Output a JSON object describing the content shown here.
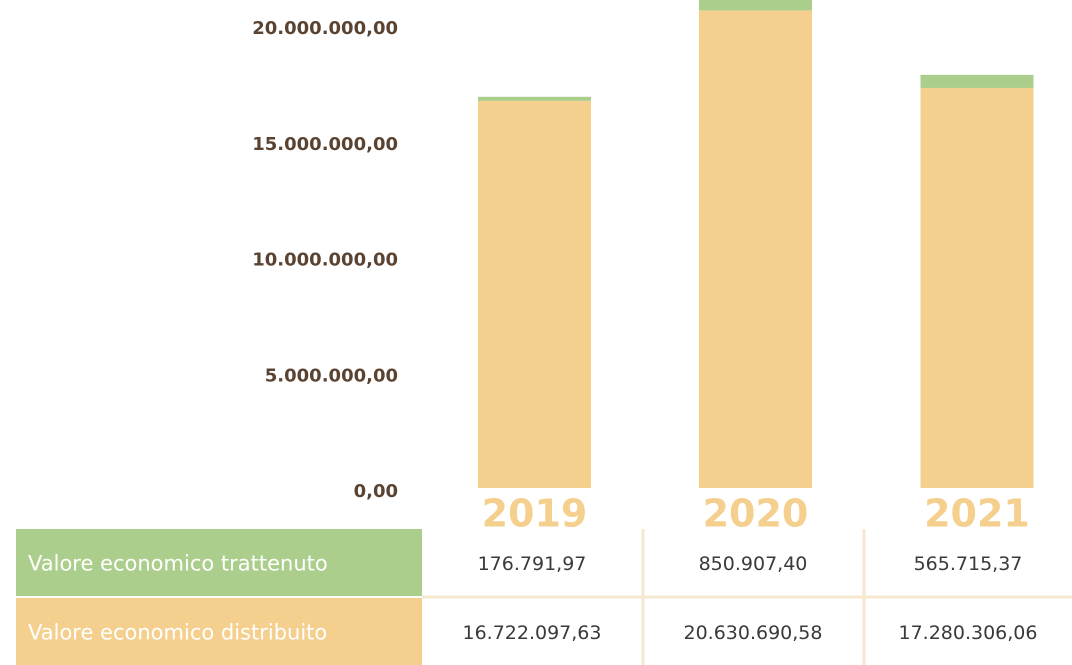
{
  "chart_data": {
    "type": "bar",
    "stacked": true,
    "categories": [
      "2019",
      "2020",
      "2021"
    ],
    "series": [
      {
        "name": "Valore economico trattenuto",
        "color": "#acce8c",
        "values": [
          176791.97,
          850907.4,
          565715.37
        ],
        "value_labels": [
          "176.791,97",
          "850.907,40",
          "565.715,37"
        ]
      },
      {
        "name": "Valore economico distribuito",
        "color": "#f5cf8e",
        "values": [
          16722097.63,
          20630690.58,
          17280306.06
        ],
        "value_labels": [
          "16.722.097,63",
          "20.630.690,58",
          "17.280.306,06"
        ]
      }
    ],
    "ylim": [
      0,
      20000000
    ],
    "yticks": [
      {
        "value": 0,
        "label": "0,00"
      },
      {
        "value": 5000000,
        "label": "5.000.000,00"
      },
      {
        "value": 10000000,
        "label": "10.000.000,00"
      },
      {
        "value": 15000000,
        "label": "15.000.000,00"
      },
      {
        "value": 20000000,
        "label": "20.000.000,00"
      }
    ]
  }
}
